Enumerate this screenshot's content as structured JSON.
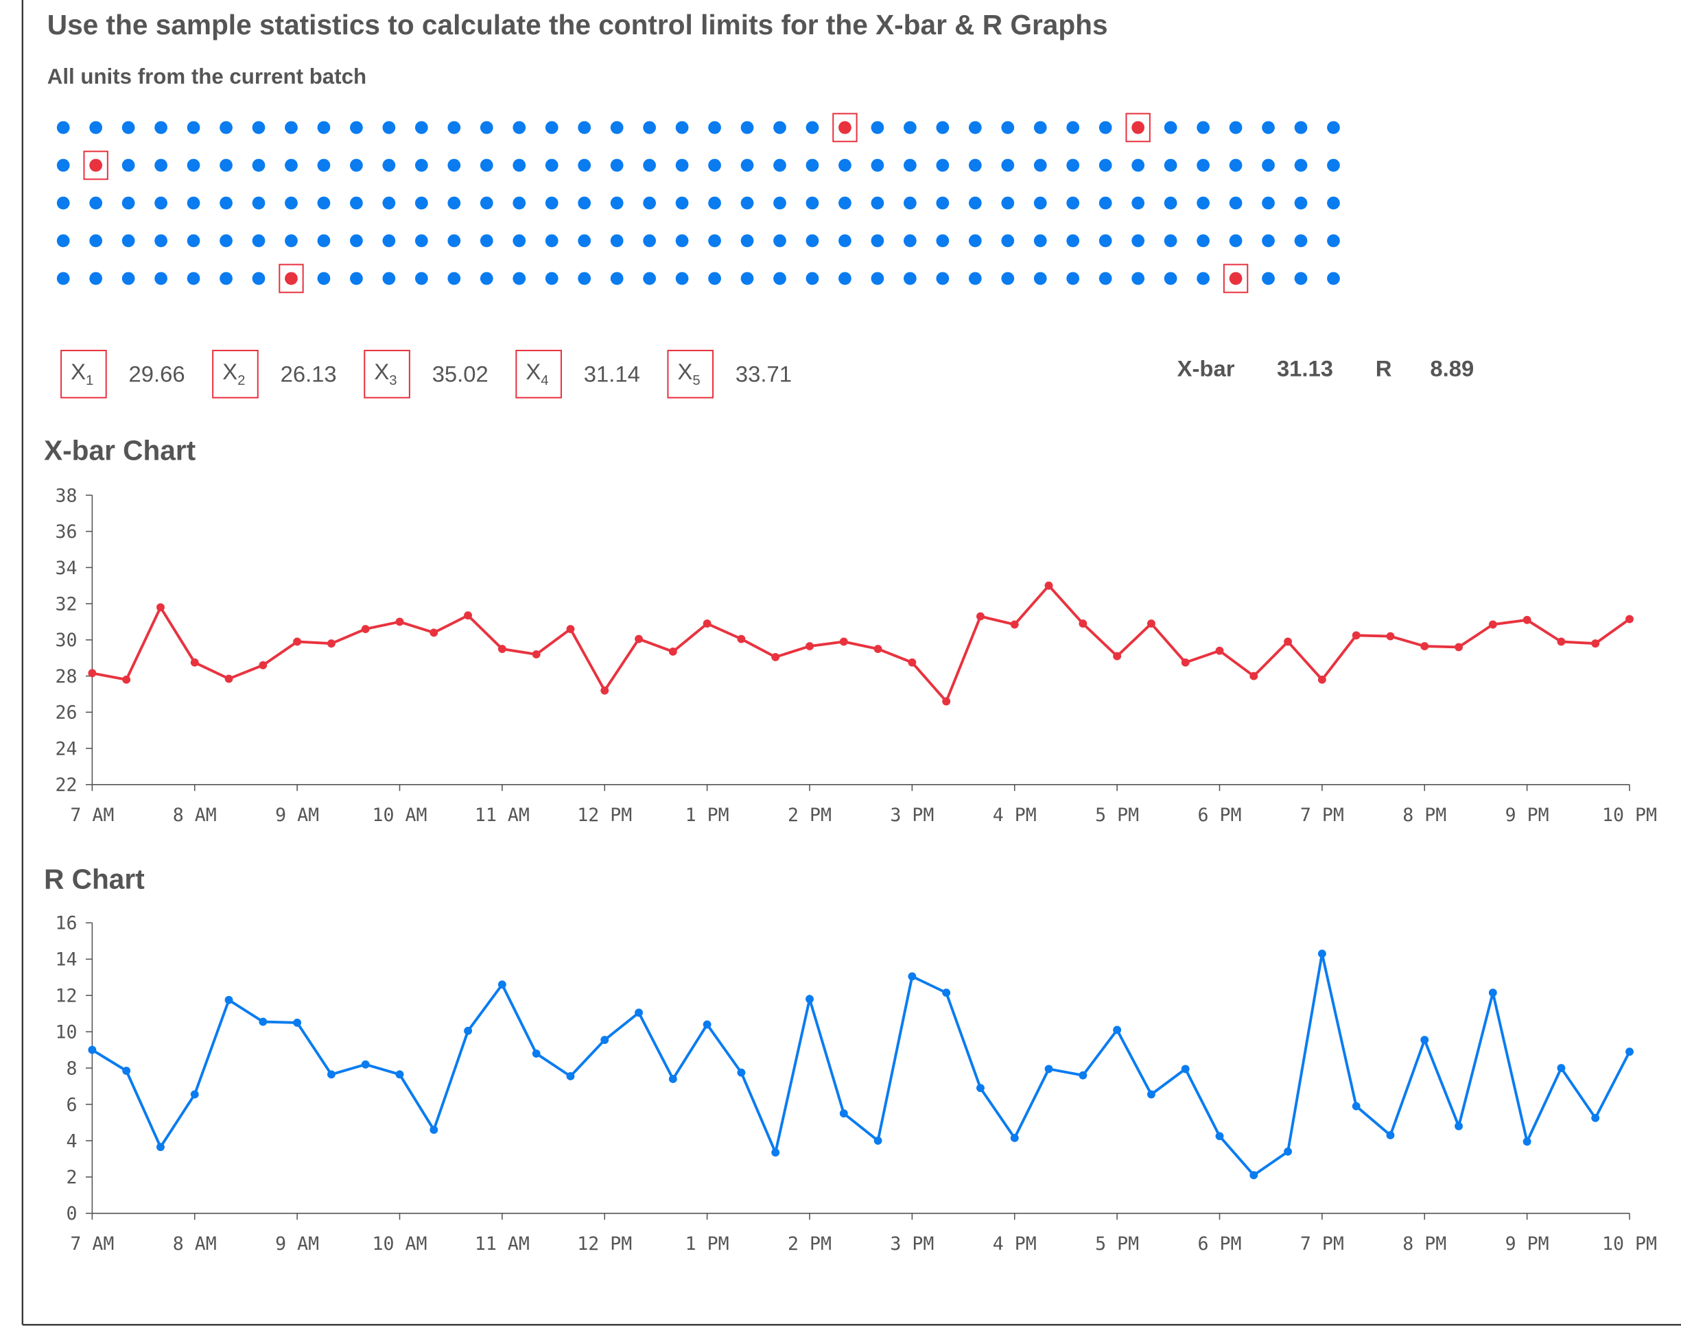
{
  "header": {
    "title": "Use the sample statistics to calculate the control limits for the X-bar & R Graphs",
    "subtitle": "All units from the current batch"
  },
  "samples": [
    {
      "label": "X",
      "sub": "1",
      "value": 29.66
    },
    {
      "label": "X",
      "sub": "2",
      "value": 26.13
    },
    {
      "label": "X",
      "sub": "3",
      "value": 35.02
    },
    {
      "label": "X",
      "sub": "4",
      "value": 31.14
    },
    {
      "label": "X",
      "sub": "5",
      "value": 33.71
    }
  ],
  "stats": [
    {
      "label": "X-bar",
      "value": 31.13
    },
    {
      "label": "R",
      "value": 8.89
    }
  ],
  "chart_data": [
    {
      "type": "line",
      "title": "X-bar Chart",
      "color": "#e8333f",
      "categories": [
        "7 AM",
        null,
        null,
        "8 AM",
        null,
        null,
        "9 AM",
        null,
        null,
        "10 AM",
        null,
        null,
        "11 AM",
        null,
        null,
        "12 PM",
        null,
        null,
        "1 PM",
        null,
        null,
        "2 PM",
        null,
        null,
        "3 PM",
        null,
        null,
        "4 PM",
        null,
        null,
        "5 PM",
        null,
        null,
        "6 PM",
        null,
        null,
        "7 PM",
        null,
        null,
        "8 PM",
        null,
        null,
        "9 PM",
        null,
        null,
        "10 PM"
      ],
      "values": [
        28.16,
        27.8,
        31.8,
        28.75,
        27.85,
        28.6,
        29.9,
        29.8,
        30.6,
        31.0,
        30.4,
        31.35,
        29.5,
        29.2,
        30.6,
        27.2,
        30.05,
        29.35,
        30.9,
        30.05,
        29.05,
        29.65,
        29.9,
        29.5,
        28.75,
        26.6,
        31.3,
        30.85,
        33.0,
        30.9,
        29.1,
        30.9,
        28.75,
        29.4,
        28.0,
        29.9,
        27.8,
        30.25,
        30.2,
        29.65,
        29.6,
        30.85,
        31.1,
        29.9,
        29.8,
        31.15
      ],
      "ylim": [
        22,
        38
      ],
      "yticks": [
        22,
        24,
        26,
        28,
        30,
        32,
        34,
        36,
        38
      ]
    },
    {
      "type": "line",
      "title": "R Chart",
      "color": "#0a7cf0",
      "categories": [
        "7 AM",
        null,
        null,
        "8 AM",
        null,
        null,
        "9 AM",
        null,
        null,
        "10 AM",
        null,
        null,
        "11 AM",
        null,
        null,
        "12 PM",
        null,
        null,
        "1 PM",
        null,
        null,
        "2 PM",
        null,
        null,
        "3 PM",
        null,
        null,
        "4 PM",
        null,
        null,
        "5 PM",
        null,
        null,
        "6 PM",
        null,
        null,
        "7 PM",
        null,
        null,
        "8 PM",
        null,
        null,
        "9 PM",
        null,
        null,
        "10 PM"
      ],
      "values": [
        9.0,
        7.85,
        3.65,
        6.55,
        11.75,
        10.55,
        10.5,
        7.65,
        8.2,
        7.65,
        4.6,
        10.05,
        12.6,
        8.8,
        7.55,
        9.55,
        11.05,
        7.4,
        10.4,
        7.75,
        3.35,
        11.8,
        5.5,
        4.0,
        13.05,
        12.15,
        6.9,
        4.15,
        7.95,
        7.6,
        10.1,
        6.55,
        7.95,
        4.25,
        2.1,
        3.4,
        14.3,
        5.9,
        4.3,
        9.55,
        4.8,
        12.15,
        3.95,
        8.0,
        5.25,
        8.9
      ],
      "ylim": [
        0,
        16
      ],
      "yticks": [
        0,
        2,
        4,
        6,
        8,
        10,
        12,
        14,
        16
      ]
    }
  ]
}
